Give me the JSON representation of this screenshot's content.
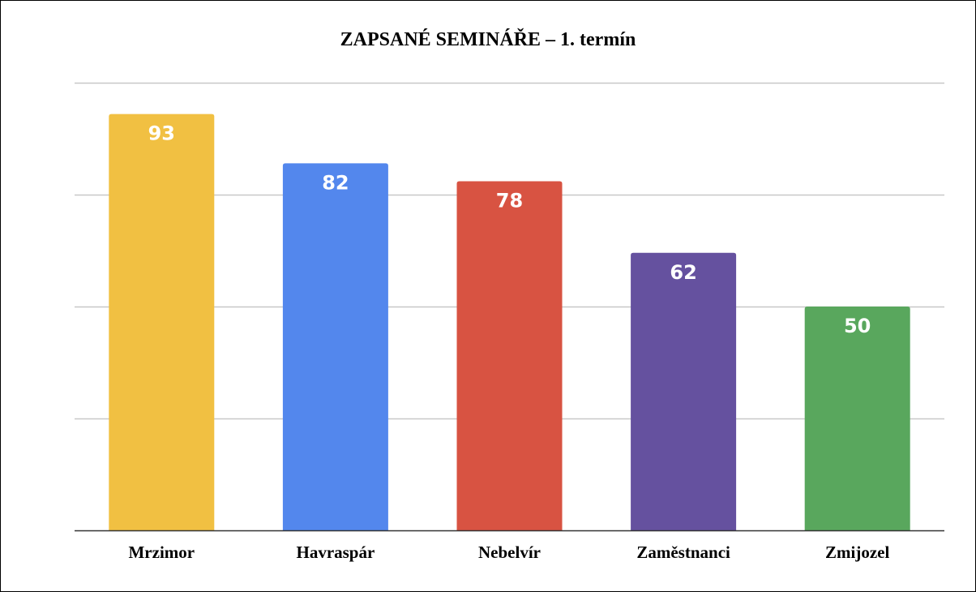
{
  "chart_data": {
    "type": "bar",
    "title": "ZAPSANÉ SEMINÁŘE – 1. termín",
    "xlabel": "",
    "ylabel": "",
    "ylim": [
      0,
      100
    ],
    "grid": true,
    "categories": [
      "Mrzimor",
      "Havraspár",
      "Nebelvír",
      "Zaměstnanci",
      "Zmijozel"
    ],
    "values": [
      93,
      82,
      78,
      62,
      50
    ],
    "colors": [
      "#f1c042",
      "#5387ed",
      "#d85342",
      "#65519f",
      "#59a75d"
    ],
    "data_labels": true
  }
}
